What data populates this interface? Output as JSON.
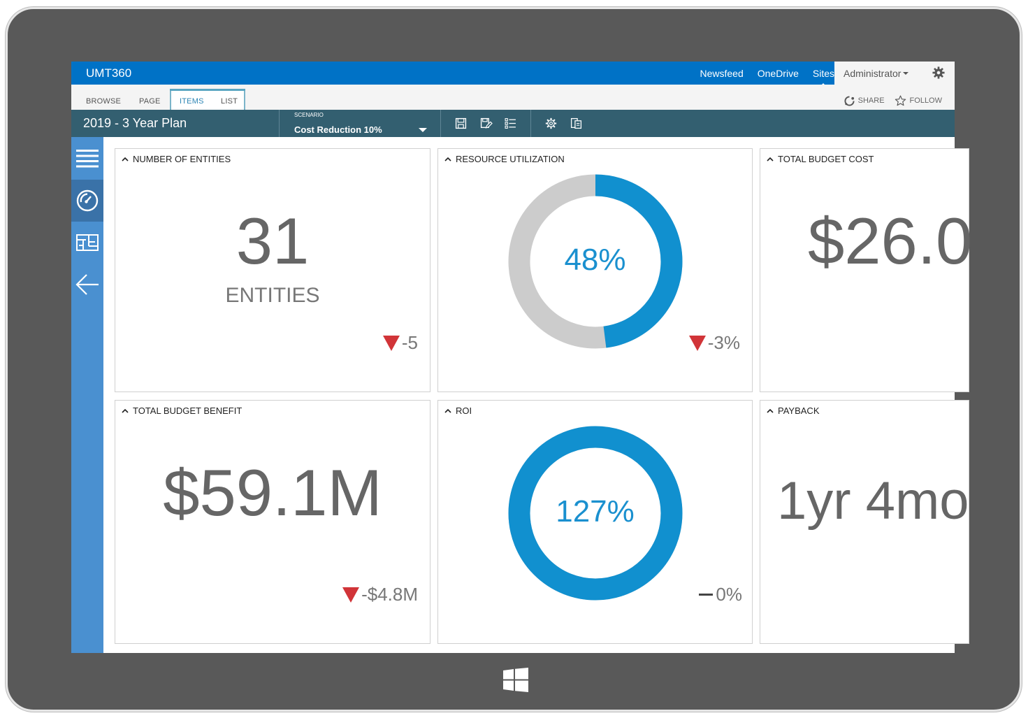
{
  "suite_bar": {
    "brand": "UMT360",
    "links": [
      "Newsfeed",
      "OneDrive",
      "Sites"
    ],
    "active_link": "Sites",
    "user": "Administrator",
    "settings_icon": "gear-icon"
  },
  "ribbon": {
    "tabs": [
      "BROWSE",
      "PAGE",
      "ITEMS",
      "LIST"
    ],
    "active_tab": "ITEMS",
    "share_label": "SHARE",
    "follow_label": "FOLLOW"
  },
  "titlebar": {
    "plan_title": "2019 - 3 Year Plan",
    "scenario_label": "SCENARIO",
    "scenario_value": "Cost Reduction 10%",
    "toolbar_icons": [
      "save-icon",
      "save-edit-icon",
      "list-icon",
      "settings-icon",
      "pages-icon"
    ]
  },
  "leftnav": {
    "items": [
      "menu-icon",
      "dashboard-gauge-icon",
      "roadmap-grid-icon",
      "back-arrow-icon"
    ],
    "active_index": 1
  },
  "colors": {
    "suite_blue": "#0072c6",
    "title_teal": "#335f70",
    "nav_blue": "#4a90d0",
    "donut_blue": "#1190cf",
    "donut_grey": "#cccccc",
    "negative_red": "#d13438"
  },
  "cards": {
    "entities": {
      "title": "NUMBER OF ENTITIES",
      "value": "31",
      "unit": "ENTITIES",
      "delta": "-5",
      "trend": "down"
    },
    "resource": {
      "title": "RESOURCE UTILIZATION",
      "value": "48%",
      "percent": 48,
      "delta": "-3%",
      "trend": "down"
    },
    "cost": {
      "title": "TOTAL BUDGET COST",
      "value": "$26.0"
    },
    "benefit": {
      "title": "TOTAL BUDGET BENEFIT",
      "value": "$59.1M",
      "delta": "-$4.8M",
      "trend": "down"
    },
    "roi": {
      "title": "ROI",
      "value": "127%",
      "percent": 127,
      "delta": "0%",
      "trend": "flat"
    },
    "payback": {
      "title": "PAYBACK",
      "value": "1yr 4mo"
    }
  }
}
